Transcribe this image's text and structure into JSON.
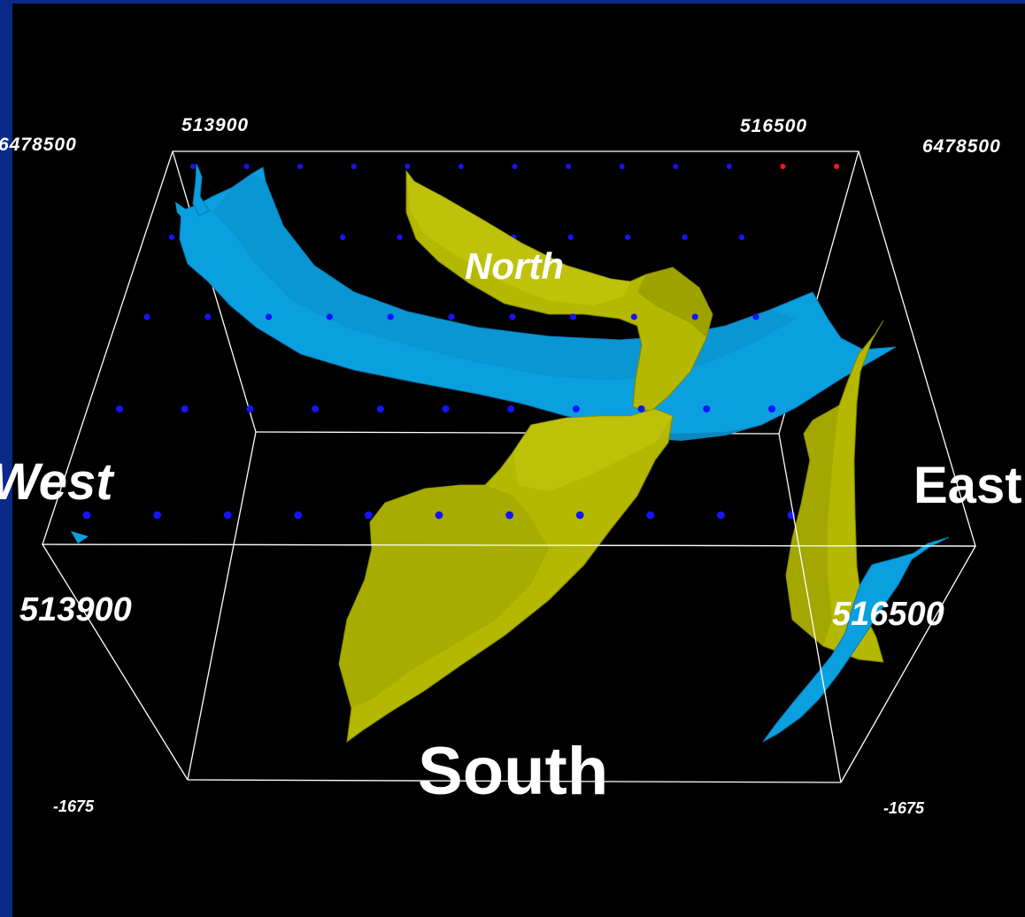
{
  "colors": {
    "frame": "#0a2a8a",
    "background": "#000000",
    "box": "#ffffff",
    "surface_blue": "#0aa0e0",
    "surface_yellow": "#b4b800",
    "point_blue": "#1414ff",
    "point_red": "#ff1414"
  },
  "labels": {
    "top_x_left": "513900",
    "top_x_right": "516500",
    "y_left": "6478500",
    "y_right": "6478500",
    "north": "North",
    "west": "West",
    "east": "East",
    "south": "South",
    "bottom_x_left": "513900",
    "bottom_x_right": "516500",
    "depth_left": "-1675",
    "depth_right": "-1675"
  },
  "icons": [
    "blue-marker-triangle-icon"
  ]
}
